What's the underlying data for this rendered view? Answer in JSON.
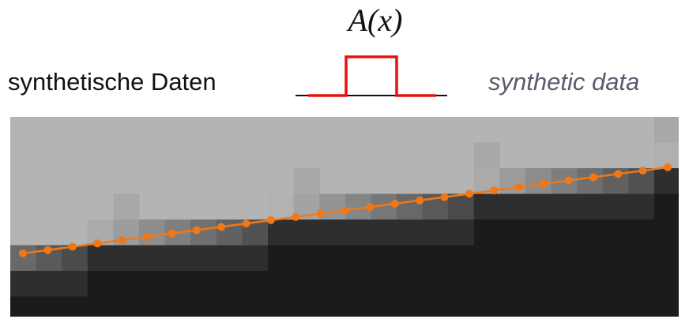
{
  "formula": "A(x)",
  "label_german": "synthetische Daten",
  "label_english": "synthetic data",
  "colors": {
    "pulse": "#e81010",
    "background_light": "#b4b4b4",
    "background_dark": "#1b1b1b",
    "edge_line": "#f07818",
    "edge_points": "#f07818"
  },
  "edge_steps": {
    "x_cells": 26,
    "step_count": 4,
    "points": 27
  }
}
